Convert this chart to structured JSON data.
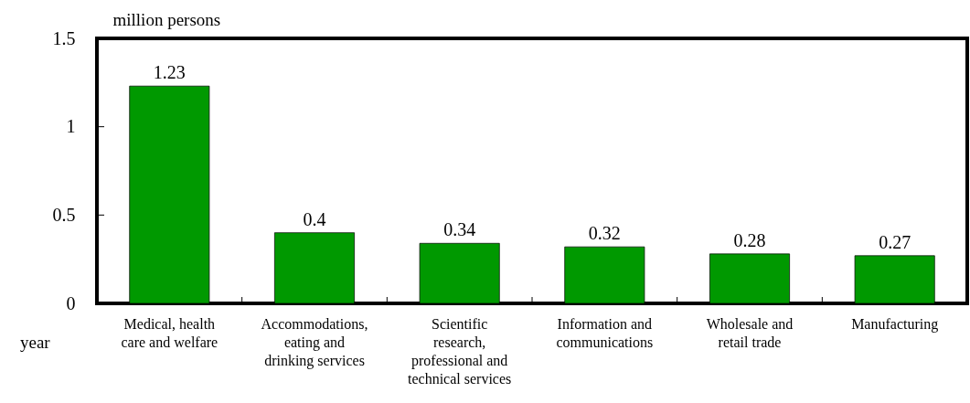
{
  "chart_data": {
    "type": "bar",
    "ylabel": "million persons",
    "annotations": [
      "year"
    ],
    "categories": [
      "Medical, health care and welfare",
      "Accommodations, eating and drinking services",
      "Scientific research, professional and technical services",
      "Information and communications",
      "Wholesale and retail trade",
      "Manufacturing"
    ],
    "values": [
      1.23,
      0.4,
      0.34,
      0.32,
      0.28,
      0.27
    ],
    "color": "#009900",
    "data_labels": true,
    "ylim": [
      0,
      1.5
    ],
    "yticks": [
      0,
      0.5,
      1,
      1.5
    ]
  }
}
